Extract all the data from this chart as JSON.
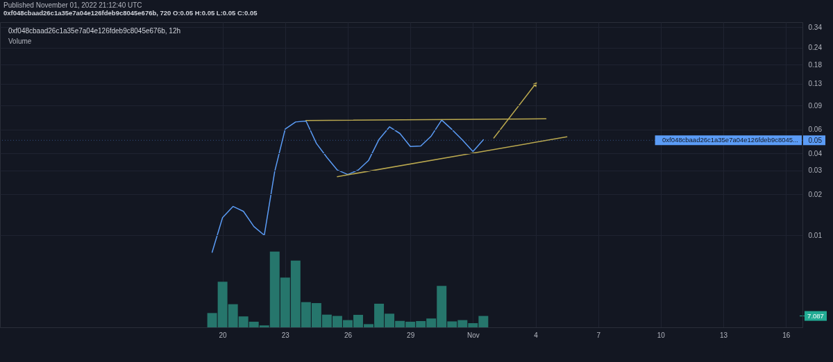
{
  "chart_data": {
    "type": "line",
    "title": "0xf048cbaad26c1a35e7a04e126fdeb9c8045e676b, 12h",
    "subtitle": "Volume",
    "annotations": [
      "Published November 01, 2022 21:12:40 UTC",
      "0xf048cbaad26c1a35e7a04e126fdeb9c8045e676b, 720 O:0.05 H:0.05 L:0.05 C:0.05"
    ],
    "x": [
      "2022-10-19T12:00",
      "2022-10-20T00:00",
      "2022-10-20T12:00",
      "2022-10-21T00:00",
      "2022-10-21T12:00",
      "2022-10-22T00:00",
      "2022-10-22T12:00",
      "2022-10-23T00:00",
      "2022-10-23T12:00",
      "2022-10-24T00:00",
      "2022-10-24T12:00",
      "2022-10-25T00:00",
      "2022-10-25T12:00",
      "2022-10-26T00:00",
      "2022-10-26T12:00",
      "2022-10-27T00:00",
      "2022-10-27T12:00",
      "2022-10-28T00:00",
      "2022-10-28T12:00",
      "2022-10-29T00:00",
      "2022-10-29T12:00",
      "2022-10-30T00:00",
      "2022-10-30T12:00",
      "2022-10-31T00:00",
      "2022-10-31T12:00",
      "2022-11-01T00:00",
      "2022-11-01T12:00"
    ],
    "series": [
      {
        "type": "bar",
        "axis": "y2",
        "color": "#26766c",
        "values": [
          8.9,
          28.4,
          14.4,
          6.8,
          3.5,
          1.2,
          47.2,
          31.0,
          41.6,
          15.7,
          15.1,
          7.9,
          7.1,
          4.5,
          7.8,
          2.0,
          14.7,
          8.5,
          4.0,
          3.5,
          3.9,
          5.5,
          25.8,
          3.7,
          4.5,
          2.6,
          7.087
        ]
      },
      {
        "color": "#5b9cf6",
        "values": [
          0.0075,
          0.0135,
          0.0163,
          0.015,
          0.0116,
          0.01,
          0.0295,
          0.0604,
          0.0682,
          0.0693,
          0.0474,
          0.0374,
          0.0302,
          0.028,
          0.0302,
          0.0356,
          0.0508,
          0.0628,
          0.0561,
          0.045,
          0.0454,
          0.0537,
          0.0704,
          0.0599,
          0.0502,
          0.0413,
          0.0505
        ]
      },
      {
        "color": "#bba94f",
        "x": [
          "2022-10-24T00:00",
          "2022-11-04T12:00"
        ],
        "values": [
          0.07,
          0.072
        ]
      },
      {
        "color": "#bba94f",
        "x": [
          "2022-10-25T12:00",
          "2022-11-05T12:00"
        ],
        "values": [
          0.027,
          0.053
        ]
      },
      {
        "color": "#bba94f",
        "marker": "triangle",
        "x": [
          "2022-11-02T00:00",
          "2022-11-04T00:00"
        ],
        "values": [
          0.052,
          0.13
        ]
      }
    ],
    "xlim": [
      "2022-10-09T12:00",
      "2022-11-16T15:00"
    ],
    "xticks": [
      {
        "value": "2022-10-20",
        "label": "20"
      },
      {
        "value": "2022-10-23",
        "label": "23"
      },
      {
        "value": "2022-10-26",
        "label": "26"
      },
      {
        "value": "2022-10-29",
        "label": "29"
      },
      {
        "value": "2022-11-01",
        "label": "Nov"
      },
      {
        "value": "2022-11-04",
        "label": "4"
      },
      {
        "value": "2022-11-07",
        "label": "7"
      },
      {
        "value": "2022-11-10",
        "label": "10"
      },
      {
        "value": "2022-11-13",
        "label": "13"
      },
      {
        "value": "2022-11-16",
        "label": "16"
      }
    ],
    "ylim": [
      0.0021,
      0.37
    ],
    "yticks": [
      0.01,
      0.02,
      0.03,
      0.04,
      0.05,
      0.06,
      0.09,
      0.13,
      0.18,
      0.24,
      0.34
    ],
    "y2lim": [
      0,
      190
    ],
    "y2ticks": [
      7.087
    ],
    "log": "y",
    "grid": true,
    "ref_lines": [
      {
        "axis": "y",
        "value": 0.05,
        "label": "0xf048cbaad26c1a35e7a04e126fdeb9c8045...",
        "color": "#5b9cf6",
        "line_style": "dotted"
      }
    ]
  }
}
